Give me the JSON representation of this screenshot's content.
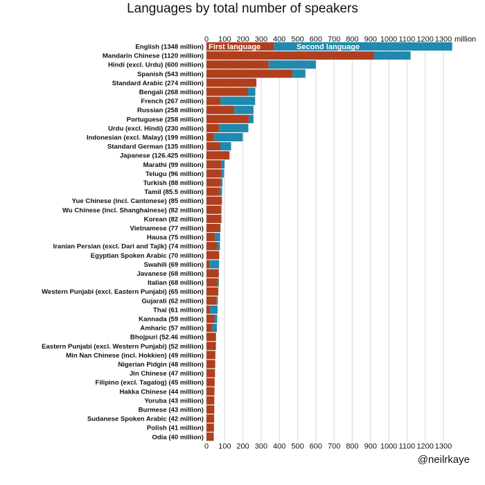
{
  "chart_data": {
    "type": "bar",
    "orientation": "horizontal",
    "stacked": true,
    "title": "Languages by total number of speakers",
    "unit": "million",
    "xlim": [
      0,
      1300
    ],
    "xticks": [
      0,
      100,
      200,
      300,
      400,
      500,
      600,
      700,
      800,
      900,
      1000,
      1100,
      1200,
      1300
    ],
    "grid": true,
    "colors": {
      "first": "#b03f1e",
      "second": "#2089ad"
    },
    "series_labels": [
      "First language",
      "Second language"
    ],
    "categories": [
      "English (1348 million)",
      "Mandarin Chinese (1120 million)",
      "Hindi (excl. Urdu) (600 million)",
      "Spanish (543 million)",
      "Standard Arabic (274 million)",
      "Bengali (268 million)",
      "French (267 million)",
      "Russian (258 million)",
      "Portuguese (258 million)",
      "Urdu (excl. Hindi) (230 million)",
      "Indonesian (excl. Malay) (199 million)",
      "Standard German (135 million)",
      "Japanese (126.425 million)",
      "Marathi (99 million)",
      "Telugu (96 million)",
      "Turkish (88 million)",
      "Tamil (85.5 million)",
      "Yue Chinese (incl. Cantonese) (85 million)",
      "Wu Chinese (incl. Shanghainese) (82 million)",
      "Korean (82 million)",
      "Vietnamese (77 million)",
      "Hausa (75 million)",
      "Iranian Persian (excl. Dari and Tajik) (74 million)",
      "Egyptian Spoken Arabic (70 million)",
      "Swahili (69 million)",
      "Javanese (68 million)",
      "Italian (68 million)",
      "Western Punjabi (excl. Eastern Punjabi) (65 million)",
      "Gujarati (62 million)",
      "Thai (61 million)",
      "Kannada (59 million)",
      "Amharic (57 million)",
      "Bhojpuri (52.46 million)",
      "Eastern Punjabi (excl. Western Punjabi) (52 million)",
      "Min Nan Chinese (incl. Hokkien) (49 million)",
      "Nigerian Pidgin (48 million)",
      "Jin Chinese (47 million)",
      "Filipino (excl. Tagalog) (45 million)",
      "Hakka Chinese (44 million)",
      "Yoruba (43 million)",
      "Burmese (43 million)",
      "Sudanese Spoken Arabic (42 million)",
      "Polish (41 million)",
      "Odia (40 million)"
    ],
    "totals": [
      1348,
      1120,
      600,
      543,
      274,
      268,
      267,
      258,
      258,
      230,
      199,
      135,
      126.425,
      99,
      96,
      88,
      85.5,
      85,
      82,
      82,
      77,
      75,
      74,
      70,
      69,
      68,
      68,
      65,
      62,
      61,
      59,
      57,
      52.46,
      52,
      49,
      48,
      47,
      45,
      44,
      43,
      43,
      42,
      41,
      40
    ],
    "first": [
      370,
      920,
      341,
      471,
      274,
      228,
      77,
      153,
      232,
      69,
      43,
      76,
      126.425,
      83,
      82,
      79,
      75,
      85,
      82,
      82,
      76,
      47,
      57,
      70,
      16,
      68,
      64,
      65,
      56,
      20,
      44,
      32,
      52.46,
      51,
      49,
      48,
      47,
      45,
      44,
      43,
      43,
      42,
      41,
      40
    ]
  },
  "credit": "@neilrkaye"
}
